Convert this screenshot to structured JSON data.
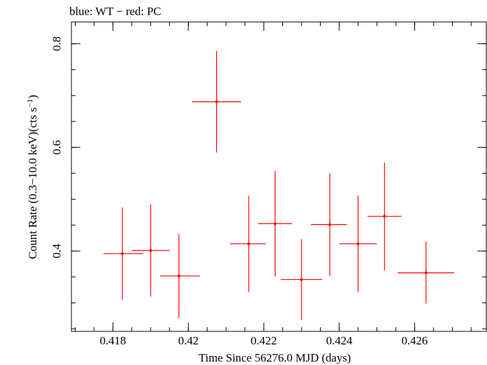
{
  "chart_data": {
    "type": "scatter",
    "title": "blue: WT − red: PC",
    "xlabel": "Time Since 56276.0 MJD (days)",
    "ylabel_parts": {
      "main": "Count Rate (0.3−10.0 keV)(cts s",
      "sup": "−1",
      "close": ")"
    },
    "xlim": [
      0.4169,
      0.4279
    ],
    "ylim": [
      0.245,
      0.842
    ],
    "x_ticks": [
      {
        "value": 0.418,
        "label": "0.418"
      },
      {
        "value": 0.42,
        "label": "0.42"
      },
      {
        "value": 0.422,
        "label": "0.422"
      },
      {
        "value": 0.424,
        "label": "0.424"
      },
      {
        "value": 0.426,
        "label": "0.426"
      }
    ],
    "x_minor_step": 0.0005,
    "y_ticks": [
      {
        "value": 0.4,
        "label": "0.4"
      },
      {
        "value": 0.6,
        "label": "0.6"
      },
      {
        "value": 0.8,
        "label": "0.8"
      }
    ],
    "y_minor_step": 0.05,
    "series": [
      {
        "color": "#ff0000",
        "points": [
          {
            "x": 0.41825,
            "y": 0.395,
            "x_lo": 0.41775,
            "x_hi": 0.4188,
            "y_lo": 0.306,
            "y_hi": 0.484
          },
          {
            "x": 0.419,
            "y": 0.401,
            "x_lo": 0.4185,
            "x_hi": 0.4195,
            "y_lo": 0.312,
            "y_hi": 0.49
          },
          {
            "x": 0.41975,
            "y": 0.352,
            "x_lo": 0.41925,
            "x_hi": 0.4203,
            "y_lo": 0.271,
            "y_hi": 0.433
          },
          {
            "x": 0.42075,
            "y": 0.688,
            "x_lo": 0.4201,
            "x_hi": 0.4214,
            "y_lo": 0.59,
            "y_hi": 0.786
          },
          {
            "x": 0.4216,
            "y": 0.414,
            "x_lo": 0.4211,
            "x_hi": 0.42205,
            "y_lo": 0.321,
            "y_hi": 0.507
          },
          {
            "x": 0.4223,
            "y": 0.453,
            "x_lo": 0.42185,
            "x_hi": 0.42275,
            "y_lo": 0.351,
            "y_hi": 0.555
          },
          {
            "x": 0.423,
            "y": 0.345,
            "x_lo": 0.42245,
            "x_hi": 0.42355,
            "y_lo": 0.267,
            "y_hi": 0.423
          },
          {
            "x": 0.42375,
            "y": 0.451,
            "x_lo": 0.42325,
            "x_hi": 0.4242,
            "y_lo": 0.352,
            "y_hi": 0.55
          },
          {
            "x": 0.4245,
            "y": 0.414,
            "x_lo": 0.424,
            "x_hi": 0.425,
            "y_lo": 0.321,
            "y_hi": 0.507
          },
          {
            "x": 0.4252,
            "y": 0.467,
            "x_lo": 0.42475,
            "x_hi": 0.42565,
            "y_lo": 0.363,
            "y_hi": 0.571
          },
          {
            "x": 0.4263,
            "y": 0.358,
            "x_lo": 0.42555,
            "x_hi": 0.42705,
            "y_lo": 0.299,
            "y_hi": 0.418
          }
        ]
      }
    ]
  }
}
